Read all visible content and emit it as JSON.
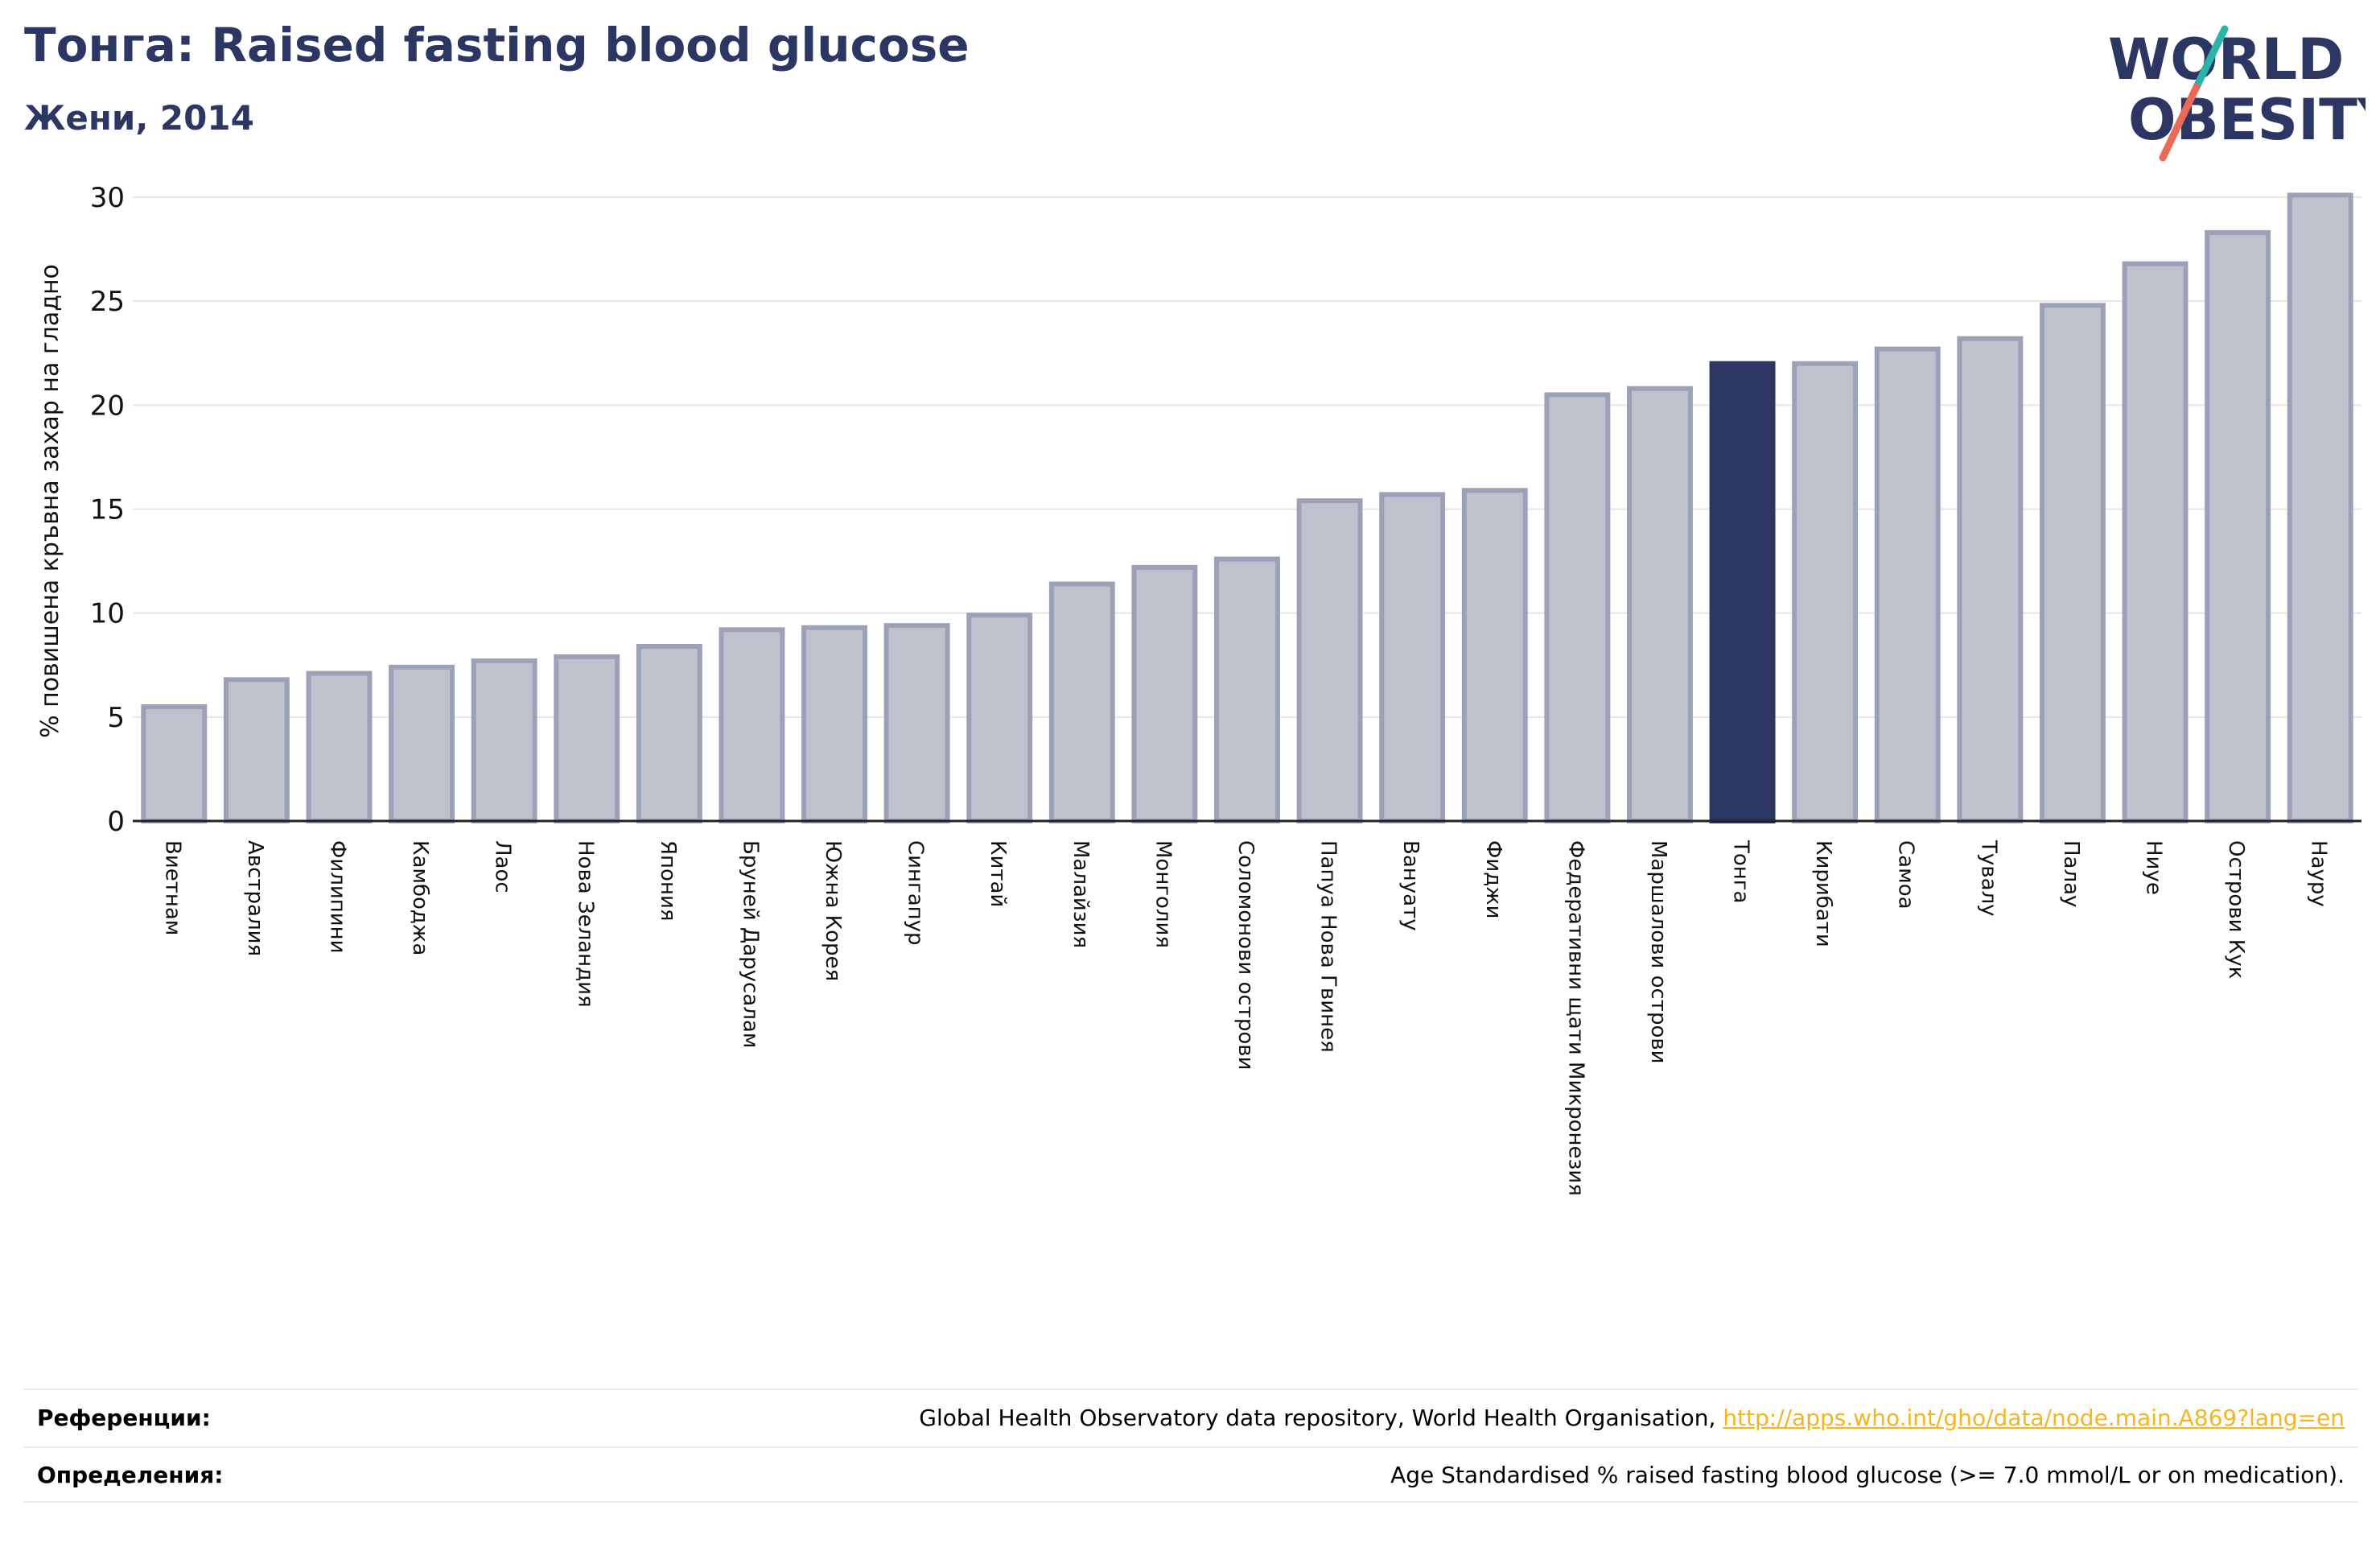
{
  "header": {
    "title": "Тонга: Raised fasting blood glucose",
    "subtitle": "Жени, 2014"
  },
  "logo": {
    "line1": "WORLD",
    "line2": "OBESITY",
    "text_color": "#2c3663",
    "slash_color_top": "#2bb5a8",
    "slash_color_bottom": "#ea6a56"
  },
  "chart_data": {
    "type": "bar",
    "ylabel": "% повишена кръвна захар на гладно",
    "xlabel": "",
    "ylim": [
      0,
      30
    ],
    "yticks": [
      0,
      5,
      10,
      15,
      20,
      25,
      30
    ],
    "grid": true,
    "highlight": "Тонга",
    "colors": {
      "bar": "#bfc1cc",
      "bar_edge": "#9da1b8",
      "highlight": "#2c3663"
    },
    "categories": [
      "Виетнам",
      "Австралия",
      "Филипини",
      "Камбоджа",
      "Лаос",
      "Нова Зеландия",
      "Япония",
      "Бруней Дарусалам",
      "Южна Корея",
      "Сингапур",
      "Китай",
      "Малайзия",
      "Монголия",
      "Соломонови острови",
      "Папуа Нова Гвинея",
      "Вануату",
      "Фиджи",
      "Федеративни щати Микронезия",
      "Маршалови острови",
      "Тонга",
      "Кирибати",
      "Самоа",
      "Тувалу",
      "Палау",
      "Ниуе",
      "Острови Кук",
      "Науру"
    ],
    "values": [
      5.5,
      6.8,
      7.1,
      7.4,
      7.7,
      7.9,
      8.4,
      9.2,
      9.3,
      9.4,
      9.9,
      11.4,
      12.2,
      12.6,
      15.4,
      15.7,
      15.9,
      20.5,
      20.8,
      22.0,
      22.0,
      22.7,
      23.2,
      24.8,
      26.8,
      28.3,
      30.1
    ]
  },
  "footer": {
    "references_label": "Референции:",
    "references_text": "Global Health Observatory data repository, World Health Organisation, ",
    "references_link": "http://apps.who.int/gho/data/node.main.A869?lang=en",
    "definitions_label": "Определения:",
    "definitions_text": "Age Standardised % raised fasting blood glucose (>= 7.0 mmol/L or on medication)."
  }
}
